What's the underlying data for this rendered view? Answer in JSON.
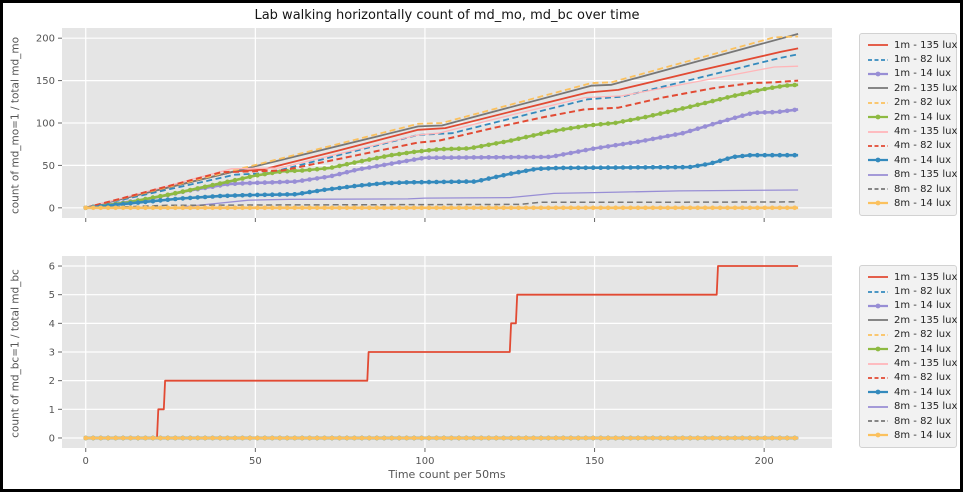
{
  "figure": {
    "title": "Lab walking horizontally count of md_mo, md_bc over time",
    "bg": "#ffffff",
    "axes_bg": "#e5e5e5",
    "grid_color": "#ffffff",
    "tick_color": "#555555",
    "label_color": "#555555",
    "title_color": "#151515",
    "legend_bg": "#f2f2f2",
    "legend_border": "#d2d2d2"
  },
  "chart_data": [
    {
      "type": "line",
      "subplot": "md_mo",
      "ylabel": "count of md_mo=1 / total md_mo",
      "xlabel": "",
      "xlim": [
        -7,
        220
      ],
      "ylim": [
        -12,
        212
      ],
      "xticks": [
        0,
        50,
        100,
        150,
        200
      ],
      "yticks": [
        0,
        50,
        100,
        150,
        200
      ],
      "x_tick_labels_visible": false,
      "grid": true,
      "legend_position": "outside-right",
      "series": [
        {
          "name": "1m - 135 lux",
          "color": "#E24A33",
          "style": "solid",
          "width": 1.8,
          "points": [
            [
              0,
              0
            ],
            [
              22,
              22
            ],
            [
              44,
              43
            ],
            [
              52,
              45
            ],
            [
              75,
              68
            ],
            [
              98,
              92
            ],
            [
              106,
              94
            ],
            [
              128,
              116
            ],
            [
              148,
              136
            ],
            [
              157,
              139
            ],
            [
              180,
              161
            ],
            [
              205,
              184
            ],
            [
              210,
              188
            ]
          ]
        },
        {
          "name": "1m - 82 lux",
          "color": "#348ABD",
          "style": "dashed",
          "width": 1.8,
          "points": [
            [
              0,
              0
            ],
            [
              44,
              39
            ],
            [
              54,
              41
            ],
            [
              98,
              86
            ],
            [
              108,
              88
            ],
            [
              148,
              128
            ],
            [
              158,
              131
            ],
            [
              205,
              177
            ],
            [
              210,
              181
            ]
          ]
        },
        {
          "name": "1m - 14 lux",
          "color": "#988ED5",
          "style": "marker",
          "width": 2.6,
          "points": [
            [
              0,
              0
            ],
            [
              18,
              10
            ],
            [
              30,
              20
            ],
            [
              42,
              28
            ],
            [
              47,
              29
            ],
            [
              55,
              30
            ],
            [
              62,
              31
            ],
            [
              72,
              37
            ],
            [
              80,
              45
            ],
            [
              90,
              52
            ],
            [
              97,
              57
            ],
            [
              100,
              59
            ],
            [
              137,
              60
            ],
            [
              150,
              70
            ],
            [
              163,
              78
            ],
            [
              176,
              88
            ],
            [
              186,
              100
            ],
            [
              193,
              108
            ],
            [
              197,
              112
            ],
            [
              204,
              113
            ],
            [
              210,
              116
            ]
          ]
        },
        {
          "name": "2m - 135 lux",
          "color": "#777777",
          "style": "solid",
          "width": 1.8,
          "points": [
            [
              0,
              0
            ],
            [
              98,
              96
            ],
            [
              105,
              97
            ],
            [
              149,
              144
            ],
            [
              155,
              145
            ],
            [
              210,
              205
            ]
          ]
        },
        {
          "name": "2m - 82 lux",
          "color": "#FBC15E",
          "style": "dashed",
          "width": 1.8,
          "points": [
            [
              0,
              0
            ],
            [
              98,
              99
            ],
            [
              105,
              100
            ],
            [
              149,
              147
            ],
            [
              155,
              148
            ],
            [
              203,
              201
            ],
            [
              210,
              202
            ]
          ]
        },
        {
          "name": "2m - 14 lux",
          "color": "#8EBA42",
          "style": "marker",
          "width": 2.6,
          "points": [
            [
              0,
              0
            ],
            [
              12,
              6
            ],
            [
              25,
              16
            ],
            [
              40,
              29
            ],
            [
              50,
              38
            ],
            [
              58,
              43
            ],
            [
              64,
              44
            ],
            [
              72,
              47
            ],
            [
              80,
              54
            ],
            [
              90,
              62
            ],
            [
              97,
              66
            ],
            [
              104,
              69
            ],
            [
              113,
              70
            ],
            [
              125,
              79
            ],
            [
              137,
              90
            ],
            [
              148,
              97
            ],
            [
              156,
              100
            ],
            [
              165,
              107
            ],
            [
              178,
              119
            ],
            [
              190,
              131
            ],
            [
              200,
              140
            ],
            [
              206,
              144
            ],
            [
              210,
              145
            ]
          ]
        },
        {
          "name": "4m - 135 lux",
          "color": "#FFB5B8",
          "style": "solid",
          "width": 1.3,
          "points": [
            [
              0,
              0
            ],
            [
              43,
              46
            ],
            [
              57,
              47
            ],
            [
              98,
              86
            ],
            [
              104,
              88
            ],
            [
              126,
              110
            ],
            [
              147,
              130
            ],
            [
              158,
              132
            ],
            [
              195,
              160
            ],
            [
              203,
              166
            ],
            [
              210,
              167
            ]
          ]
        },
        {
          "name": "4m - 82 lux",
          "color": "#E24A33",
          "style": "dashed",
          "width": 2.0,
          "points": [
            [
              0,
              0
            ],
            [
              40,
              42
            ],
            [
              58,
              44
            ],
            [
              80,
              62
            ],
            [
              98,
              77
            ],
            [
              104,
              79
            ],
            [
              120,
              94
            ],
            [
              135,
              107
            ],
            [
              147,
              116
            ],
            [
              157,
              118
            ],
            [
              170,
              130
            ],
            [
              185,
              141
            ],
            [
              196,
              147
            ],
            [
              203,
              148
            ],
            [
              210,
              150
            ]
          ]
        },
        {
          "name": "4m - 14 lux",
          "color": "#348ABD",
          "style": "marker",
          "width": 2.6,
          "points": [
            [
              0,
              0
            ],
            [
              15,
              6
            ],
            [
              28,
              11
            ],
            [
              40,
              14
            ],
            [
              48,
              15
            ],
            [
              62,
              16
            ],
            [
              70,
              21
            ],
            [
              80,
              26
            ],
            [
              88,
              29
            ],
            [
              95,
              30
            ],
            [
              115,
              31
            ],
            [
              125,
              40
            ],
            [
              133,
              46
            ],
            [
              140,
              47
            ],
            [
              178,
              48
            ],
            [
              184,
              52
            ],
            [
              191,
              60
            ],
            [
              196,
              62
            ],
            [
              210,
              62
            ]
          ]
        },
        {
          "name": "8m - 135 lux",
          "color": "#988ED5",
          "style": "solid",
          "width": 1.3,
          "points": [
            [
              0,
              0
            ],
            [
              28,
              1
            ],
            [
              38,
              5
            ],
            [
              48,
              9
            ],
            [
              60,
              10
            ],
            [
              95,
              10.5
            ],
            [
              100,
              11.5
            ],
            [
              125,
              12
            ],
            [
              138,
              17
            ],
            [
              150,
              18
            ],
            [
              175,
              20
            ],
            [
              210,
              21
            ]
          ]
        },
        {
          "name": "8m - 82 lux",
          "color": "#777777",
          "style": "dashed",
          "width": 1.5,
          "points": [
            [
              0,
              0
            ],
            [
              14,
              1.5
            ],
            [
              24,
              3
            ],
            [
              60,
              3.5
            ],
            [
              128,
              4
            ],
            [
              134,
              6.5
            ],
            [
              165,
              6.5
            ],
            [
              210,
              7
            ]
          ]
        },
        {
          "name": "8m - 14 lux",
          "color": "#FBC15E",
          "style": "marker",
          "width": 2.6,
          "points": [
            [
              0,
              0
            ],
            [
              210,
              0
            ]
          ]
        }
      ]
    },
    {
      "type": "line",
      "subplot": "md_bc",
      "ylabel": "count of md_bc=1 / total md_bc",
      "xlabel": "Time count per 50ms",
      "xlim": [
        -7,
        220
      ],
      "ylim": [
        -0.35,
        6.35
      ],
      "xticks": [
        0,
        50,
        100,
        150,
        200
      ],
      "yticks": [
        0,
        1,
        2,
        3,
        4,
        5,
        6
      ],
      "x_tick_labels_visible": true,
      "grid": true,
      "legend_position": "outside-right",
      "series": [
        {
          "name": "1m - 135 lux",
          "color": "#E24A33",
          "style": "solid",
          "width": 1.8,
          "points": [
            [
              0,
              0
            ],
            [
              21,
              0
            ],
            [
              21.4,
              1
            ],
            [
              23,
              1
            ],
            [
              23.4,
              2
            ],
            [
              83,
              2
            ],
            [
              83.4,
              3
            ],
            [
              125,
              3
            ],
            [
              125.4,
              4
            ],
            [
              126.8,
              4
            ],
            [
              127.2,
              5
            ],
            [
              186,
              5
            ],
            [
              186.4,
              6
            ],
            [
              210,
              6
            ]
          ]
        },
        {
          "name": "1m - 82 lux",
          "color": "#348ABD",
          "style": "dashed",
          "width": 1.8,
          "points": [
            [
              0,
              0
            ],
            [
              210,
              0
            ]
          ]
        },
        {
          "name": "1m - 14 lux",
          "color": "#988ED5",
          "style": "marker",
          "width": 2.6,
          "points": [
            [
              0,
              0
            ],
            [
              210,
              0
            ]
          ]
        },
        {
          "name": "2m - 135 lux",
          "color": "#777777",
          "style": "solid",
          "width": 1.8,
          "points": [
            [
              0,
              0
            ],
            [
              210,
              0
            ]
          ]
        },
        {
          "name": "2m - 82 lux",
          "color": "#FBC15E",
          "style": "dashed",
          "width": 1.8,
          "points": [
            [
              0,
              0
            ],
            [
              210,
              0
            ]
          ]
        },
        {
          "name": "2m - 14 lux",
          "color": "#8EBA42",
          "style": "marker",
          "width": 2.6,
          "points": [
            [
              0,
              0
            ],
            [
              210,
              0
            ]
          ]
        },
        {
          "name": "4m - 135 lux",
          "color": "#FFB5B8",
          "style": "solid",
          "width": 1.3,
          "points": [
            [
              0,
              0
            ],
            [
              210,
              0
            ]
          ]
        },
        {
          "name": "4m - 82 lux",
          "color": "#E24A33",
          "style": "dashed",
          "width": 2.0,
          "points": [
            [
              0,
              0
            ],
            [
              210,
              0
            ]
          ]
        },
        {
          "name": "4m - 14 lux",
          "color": "#348ABD",
          "style": "marker",
          "width": 2.6,
          "points": [
            [
              0,
              0
            ],
            [
              210,
              0
            ]
          ]
        },
        {
          "name": "8m - 135 lux",
          "color": "#988ED5",
          "style": "solid",
          "width": 1.3,
          "points": [
            [
              0,
              0
            ],
            [
              210,
              0
            ]
          ]
        },
        {
          "name": "8m - 82 lux",
          "color": "#777777",
          "style": "dashed",
          "width": 1.5,
          "points": [
            [
              0,
              0
            ],
            [
              210,
              0
            ]
          ]
        },
        {
          "name": "8m - 14 lux",
          "color": "#FBC15E",
          "style": "marker",
          "width": 2.6,
          "points": [
            [
              0,
              0
            ],
            [
              210,
              0
            ]
          ]
        }
      ]
    }
  ]
}
